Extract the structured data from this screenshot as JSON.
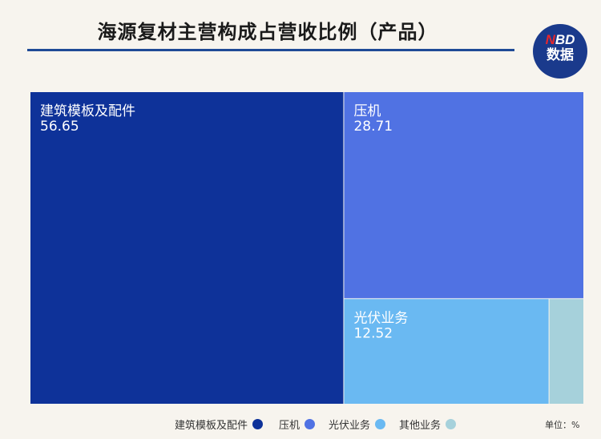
{
  "chart_data": {
    "type": "treemap",
    "title": "海源复材主营构成占营收比例（产品）",
    "unit_note": "单位：%",
    "items": [
      {
        "name": "建筑模板及配件",
        "value": 56.65,
        "value_label": "56.65",
        "color": "#0e3299",
        "show_label": true
      },
      {
        "name": "压机",
        "value": 28.71,
        "value_label": "28.71",
        "color": "#5072e3",
        "show_label": true
      },
      {
        "name": "光伏业务",
        "value": 12.52,
        "value_label": "12.52",
        "color": "#6ab9f2",
        "show_label": true
      },
      {
        "name": "其他业务",
        "value": 2.12,
        "value_label": "",
        "color": "#a6d1db",
        "show_label": false
      }
    ],
    "legend_position": "bottom"
  },
  "logo": {
    "line1_n": "N",
    "line1_rest": "BD",
    "line2": "数据"
  }
}
